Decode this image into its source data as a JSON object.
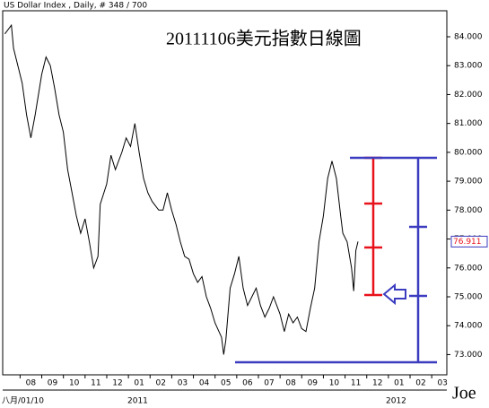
{
  "chart_data": {
    "type": "line",
    "header": "US Dollar Index , Daily, # 348 / 700",
    "title": "20111106美元指數日線圖",
    "last_value_label": "76.911",
    "start_label": "八月/01/10",
    "year_labels": [
      "2011",
      "2012"
    ],
    "signature": "Joe",
    "color": "#000000",
    "ylim": [
      72.3,
      84.9
    ],
    "yticks": [
      {
        "value": 73,
        "label": "73.000"
      },
      {
        "value": 74,
        "label": "74.000"
      },
      {
        "value": 75,
        "label": "75.000"
      },
      {
        "value": 76,
        "label": "76.000"
      },
      {
        "value": 77,
        "label": "77.000"
      },
      {
        "value": 78,
        "label": "78.000"
      },
      {
        "value": 79,
        "label": "79.000"
      },
      {
        "value": 80,
        "label": "80.000"
      },
      {
        "value": 81,
        "label": "81.000"
      },
      {
        "value": 82,
        "label": "82.000"
      },
      {
        "value": 83,
        "label": "83.000"
      },
      {
        "value": 84,
        "label": "84.000"
      }
    ],
    "xlim": [
      -1.3,
      19.2
    ],
    "xticks": [
      {
        "value": 0,
        "label": "08"
      },
      {
        "value": 1,
        "label": "09"
      },
      {
        "value": 2,
        "label": "10"
      },
      {
        "value": 3,
        "label": "11"
      },
      {
        "value": 4,
        "label": "12"
      },
      {
        "value": 5,
        "label": "01"
      },
      {
        "value": 6,
        "label": "02"
      },
      {
        "value": 7,
        "label": "03"
      },
      {
        "value": 8,
        "label": "04"
      },
      {
        "value": 9,
        "label": "05"
      },
      {
        "value": 10,
        "label": "06"
      },
      {
        "value": 11,
        "label": "07"
      },
      {
        "value": 12,
        "label": "08"
      },
      {
        "value": 13,
        "label": "09"
      },
      {
        "value": 14,
        "label": "10"
      },
      {
        "value": 15,
        "label": "11"
      },
      {
        "value": 16,
        "label": "12"
      },
      {
        "value": 17,
        "label": "01"
      },
      {
        "value": 18,
        "label": "02"
      },
      {
        "value": 19,
        "label": "03"
      }
    ],
    "x": [
      -1.2,
      -0.9,
      -0.8,
      -0.6,
      -0.4,
      -0.2,
      0.0,
      0.2,
      0.5,
      0.7,
      0.9,
      1.1,
      1.3,
      1.5,
      1.7,
      1.9,
      2.1,
      2.3,
      2.5,
      2.7,
      2.9,
      3.1,
      3.2,
      3.5,
      3.7,
      3.9,
      4.2,
      4.4,
      4.6,
      4.8,
      5.0,
      5.2,
      5.4,
      5.6,
      5.9,
      6.1,
      6.3,
      6.5,
      6.7,
      6.9,
      7.1,
      7.3,
      7.5,
      7.7,
      7.9,
      8.1,
      8.3,
      8.5,
      8.8,
      8.9,
      9.0,
      9.2,
      9.4,
      9.6,
      9.8,
      10.0,
      10.2,
      10.4,
      10.6,
      10.8,
      11.0,
      11.2,
      11.5,
      11.7,
      11.9,
      12.1,
      12.3,
      12.5,
      12.7,
      12.9,
      13.1,
      13.3,
      13.5,
      13.7,
      13.9,
      14.1,
      14.3,
      14.4,
      14.6,
      14.8,
      14.9,
      15.0,
      15.1
    ],
    "values": [
      84.1,
      84.4,
      83.6,
      83.0,
      82.4,
      81.3,
      80.5,
      81.3,
      82.7,
      83.3,
      83.0,
      82.2,
      81.3,
      80.7,
      79.4,
      78.6,
      77.8,
      77.2,
      77.7,
      76.9,
      76.0,
      76.4,
      78.2,
      78.9,
      79.9,
      79.4,
      80.0,
      80.5,
      80.2,
      81.0,
      80.0,
      79.1,
      78.6,
      78.3,
      78.0,
      78.0,
      78.6,
      78.0,
      77.5,
      76.9,
      76.4,
      76.3,
      75.8,
      75.5,
      75.7,
      75.0,
      74.6,
      74.1,
      73.6,
      73.0,
      73.5,
      75.3,
      75.8,
      76.4,
      75.3,
      74.7,
      75.0,
      75.3,
      74.7,
      74.3,
      74.6,
      75.0,
      74.4,
      73.8,
      74.4,
      74.1,
      74.3,
      73.9,
      73.8,
      74.6,
      75.3,
      76.9,
      77.8,
      79.1,
      79.7,
      79.1,
      77.8,
      77.2,
      76.9,
      76.0,
      75.2,
      76.6,
      76.911
    ]
  }
}
